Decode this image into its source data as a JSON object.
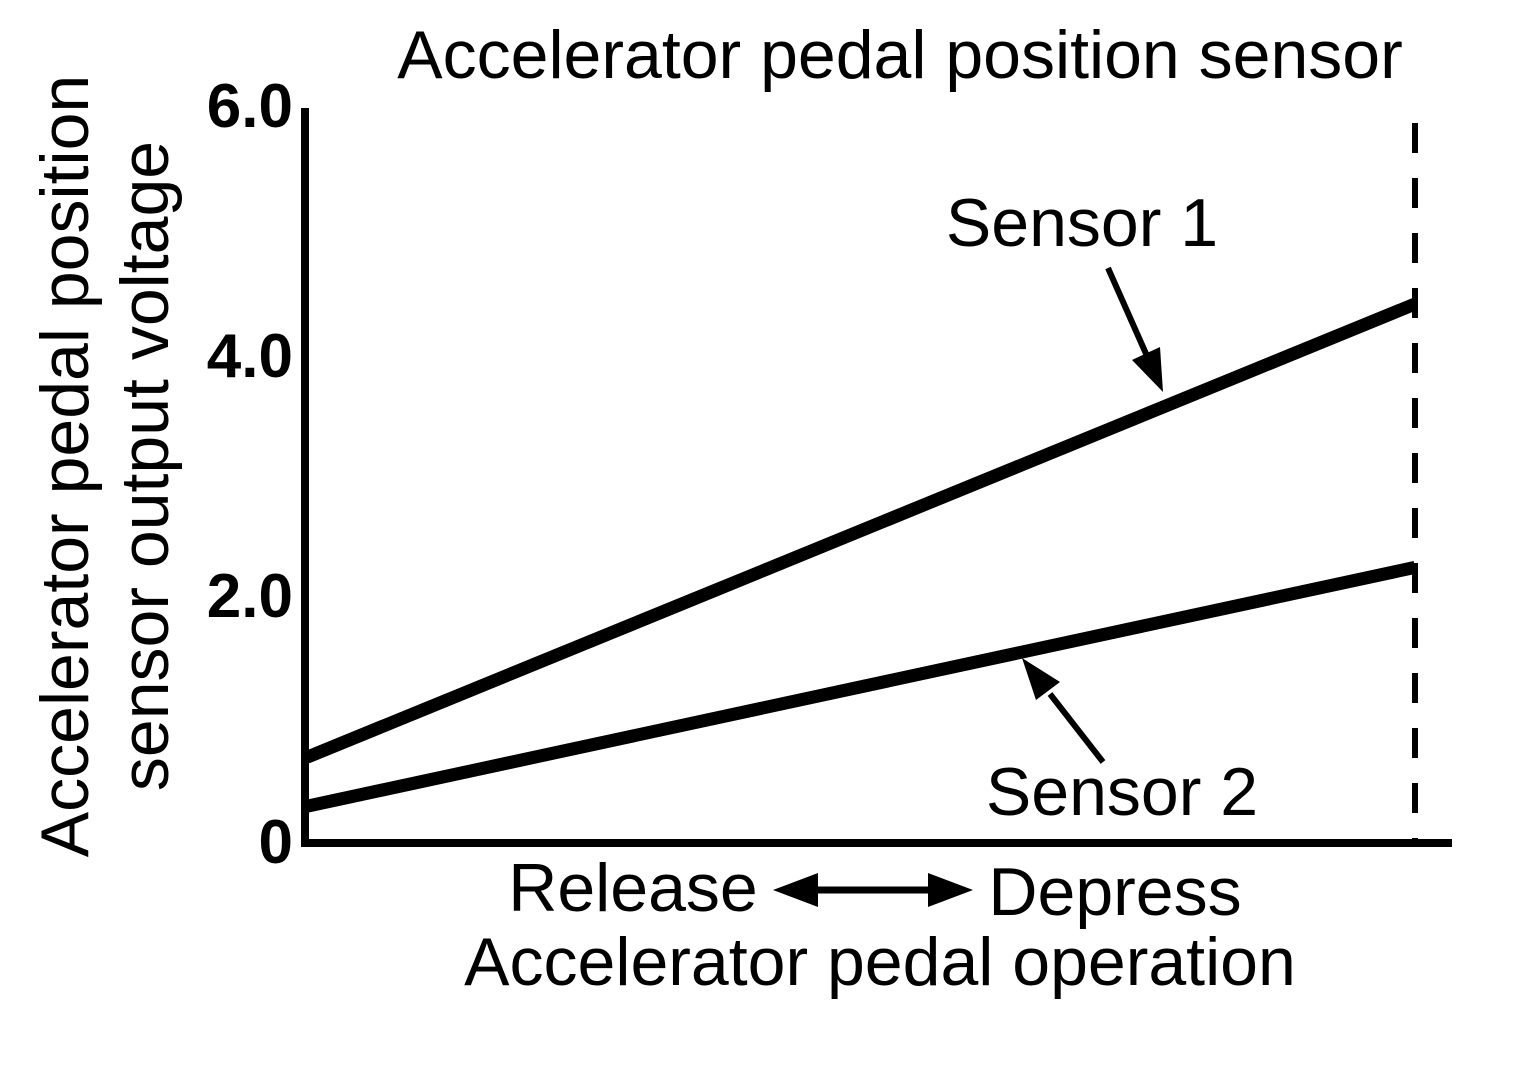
{
  "figure": {
    "background": "#ffffff",
    "ink_color": "#000000"
  },
  "chart_data": {
    "type": "line",
    "title": "Accelerator pedal position sensor",
    "xlabel": "Accelerator pedal operation",
    "ylabel": "Accelerator pedal position sensor output voltage",
    "ylabel_lines": [
      "Accelerator pedal position",
      "sensor output voltage"
    ],
    "x_categories": [
      "Release",
      "Depress"
    ],
    "x_arrow_annotation": "double-headed arrow between Release and Depress",
    "ylim": [
      0,
      6.0
    ],
    "yticks": [
      6.0,
      4.0,
      2.0,
      0
    ],
    "ytick_labels": [
      "6.0",
      "4.0",
      "2.0",
      "0"
    ],
    "grid": false,
    "legend_position": "inline arrow annotations on plot",
    "series": [
      {
        "name": "Sensor 1",
        "values": [
          0.7,
          4.4
        ]
      },
      {
        "name": "Sensor 2",
        "values": [
          0.3,
          2.25
        ]
      }
    ],
    "annotations": [
      {
        "type": "dashed-vertical-line",
        "x": "full depression (right end of travel)"
      }
    ]
  }
}
